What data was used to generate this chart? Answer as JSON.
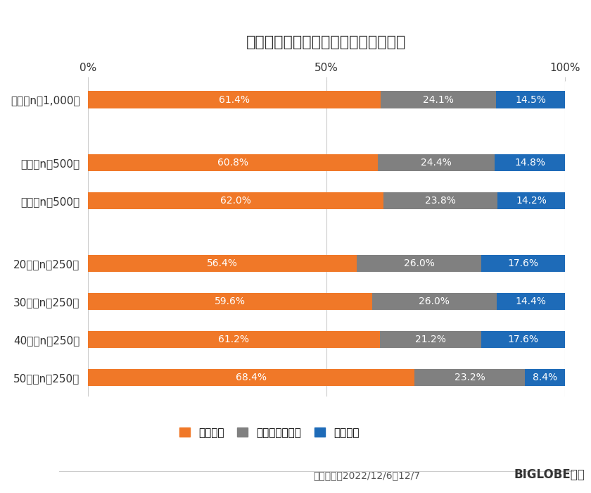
{
  "title": "国内旅行なら温泉のある所に行きたい",
  "categories": [
    "全体（n＝1,000）",
    "男性（n＝500）",
    "女性（n＝500）",
    "20代（n＝250）",
    "30代（n＝250）",
    "40代（n＝250）",
    "50代（n＝250）"
  ],
  "series": [
    {
      "name": "そう思う",
      "color": "#F07828",
      "values": [
        61.4,
        60.8,
        62.0,
        56.4,
        59.6,
        61.2,
        68.4
      ]
    },
    {
      "name": "どちらでもよい",
      "color": "#808080",
      "values": [
        24.1,
        24.4,
        23.8,
        26.0,
        26.0,
        21.2,
        23.2
      ]
    },
    {
      "name": "思わない",
      "color": "#1E6BB8",
      "values": [
        14.5,
        14.8,
        14.2,
        17.6,
        14.4,
        17.6,
        8.4
      ]
    }
  ],
  "bar_height": 0.45,
  "xlim": [
    0,
    100
  ],
  "xticks": [
    0,
    50,
    100
  ],
  "xticklabels": [
    "0%",
    "50%",
    "100%"
  ],
  "label_fontsize": 10,
  "title_fontsize": 16,
  "legend_fontsize": 11,
  "category_fontsize": 11,
  "footer_text": "調査期間：2022/12/6～12/7",
  "footer_brand": "BIGLOBE調べ",
  "background_color": "#FFFFFF",
  "grid_color": "#CCCCCC",
  "text_color": "#333333"
}
